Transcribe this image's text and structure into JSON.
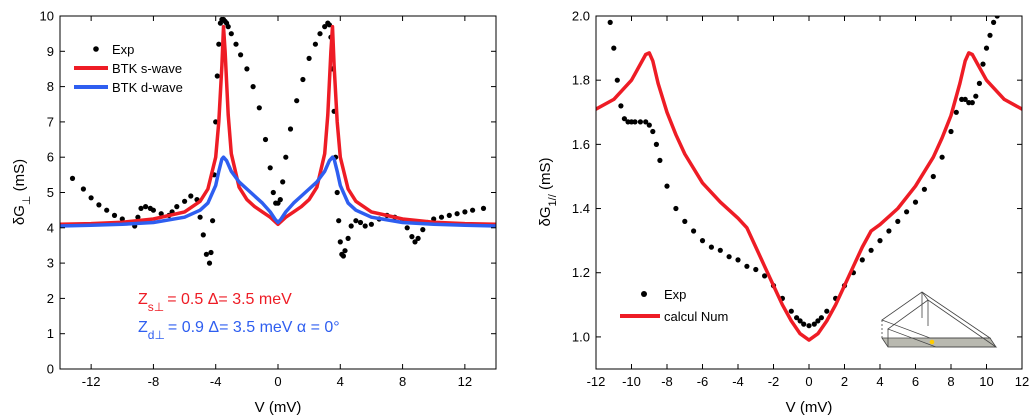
{
  "chart_data": [
    {
      "id": "left",
      "type": "line",
      "xlabel_main": "V (mV)",
      "ylabel_main": "δG",
      "ylabel_sub": "⊥",
      "ylabel_unit": " (mS)",
      "xlim": [
        -14,
        14
      ],
      "ylim": [
        0,
        10
      ],
      "xticks": [
        -12,
        -8,
        -4,
        0,
        4,
        8,
        12
      ],
      "yticks": [
        0,
        1,
        2,
        3,
        4,
        5,
        6,
        7,
        8,
        9,
        10
      ],
      "grid": false,
      "legend_position": "top-left",
      "series": [
        {
          "name": "Exp",
          "style": "markers",
          "color": "#000000",
          "x": [
            -13.2,
            -12.5,
            -12,
            -11.5,
            -11,
            -10.5,
            -10,
            -9.5,
            -9.2,
            -9,
            -8.8,
            -8.5,
            -8.2,
            -8,
            -7.5,
            -7,
            -6.8,
            -6.5,
            -6,
            -5.6,
            -5.2,
            -5,
            -4.8,
            -4.6,
            -4.4,
            -4.3,
            -4.2,
            -4.1,
            -4,
            -3.9,
            -3.8,
            -3.7,
            -3.6,
            -3.5,
            -3.4,
            -3.3,
            -3.2,
            -3,
            -2.7,
            -2.4,
            -2,
            -1.6,
            -1.2,
            -0.8,
            -0.5,
            -0.3,
            -0.15,
            0,
            0.15,
            0.3,
            0.5,
            0.8,
            1.2,
            1.6,
            2,
            2.4,
            2.7,
            3,
            3.2,
            3.3,
            3.4,
            3.5,
            3.6,
            3.7,
            3.8,
            3.9,
            4,
            4.1,
            4.2,
            4.3,
            4.5,
            4.7,
            5,
            5.3,
            5.6,
            6,
            6.5,
            7,
            7.5,
            8,
            8.3,
            8.6,
            8.8,
            9,
            9.3,
            9.6,
            10,
            10.5,
            11,
            11.5,
            12,
            12.5,
            13.2
          ],
          "y": [
            5.4,
            5.1,
            4.85,
            4.65,
            4.5,
            4.35,
            4.25,
            4.15,
            4.05,
            4.3,
            4.55,
            4.6,
            4.55,
            4.5,
            4.4,
            4.35,
            4.45,
            4.6,
            4.75,
            4.9,
            4.8,
            4.3,
            3.8,
            3.25,
            3.0,
            3.3,
            4.2,
            5.5,
            7.0,
            8.3,
            9.2,
            9.8,
            9.9,
            9.9,
            9.85,
            9.8,
            9.7,
            9.5,
            9.2,
            8.9,
            8.5,
            8.0,
            7.4,
            6.5,
            5.7,
            5.0,
            4.7,
            4.7,
            4.8,
            5.3,
            6.0,
            6.8,
            7.6,
            8.2,
            8.8,
            9.2,
            9.5,
            9.7,
            9.8,
            9.75,
            9.4,
            8.5,
            7.3,
            6.0,
            5.0,
            4.2,
            3.6,
            3.25,
            3.2,
            3.35,
            3.7,
            4.05,
            4.2,
            4.15,
            4.05,
            4.1,
            4.25,
            4.35,
            4.3,
            4.2,
            4.0,
            3.75,
            3.6,
            3.7,
            3.95,
            4.15,
            4.25,
            4.3,
            4.35,
            4.4,
            4.45,
            4.5,
            4.55
          ]
        },
        {
          "name": "BTK s-wave",
          "style": "line",
          "color": "#ee1c25",
          "x": [
            -14,
            -12,
            -10,
            -8,
            -6,
            -5,
            -4.5,
            -4,
            -3.8,
            -3.6,
            -3.5,
            -3.4,
            -3.2,
            -3,
            -2.5,
            -2,
            -1.5,
            -1,
            -0.5,
            0,
            0.5,
            1,
            1.5,
            2,
            2.5,
            3,
            3.2,
            3.4,
            3.5,
            3.6,
            3.8,
            4,
            4.5,
            5,
            6,
            8,
            10,
            12,
            14
          ],
          "y": [
            4.1,
            4.12,
            4.16,
            4.25,
            4.45,
            4.75,
            5.1,
            6.0,
            7.0,
            8.6,
            9.7,
            9.0,
            7.2,
            6.1,
            5.15,
            4.8,
            4.6,
            4.45,
            4.3,
            4.1,
            4.3,
            4.45,
            4.6,
            4.8,
            5.15,
            6.1,
            7.2,
            9.0,
            9.7,
            8.6,
            7.0,
            6.0,
            5.1,
            4.75,
            4.45,
            4.25,
            4.16,
            4.12,
            4.1
          ]
        },
        {
          "name": "BTK d-wave",
          "style": "line",
          "color": "#2e5ef0",
          "x": [
            -14,
            -12,
            -10,
            -8,
            -6,
            -5,
            -4.5,
            -4,
            -3.8,
            -3.6,
            -3.5,
            -3.3,
            -3,
            -2.5,
            -2,
            -1.5,
            -1,
            -0.5,
            -0.2,
            0,
            0.2,
            0.5,
            1,
            1.5,
            2,
            2.5,
            3,
            3.3,
            3.5,
            3.6,
            3.8,
            4,
            4.5,
            5,
            6,
            8,
            10,
            12,
            14
          ],
          "y": [
            4.05,
            4.07,
            4.1,
            4.15,
            4.3,
            4.5,
            4.7,
            5.2,
            5.6,
            5.95,
            6.0,
            5.9,
            5.6,
            5.3,
            5.1,
            4.9,
            4.7,
            4.45,
            4.25,
            4.15,
            4.25,
            4.45,
            4.7,
            4.9,
            5.1,
            5.3,
            5.6,
            5.9,
            6.0,
            5.95,
            5.6,
            5.2,
            4.7,
            4.5,
            4.3,
            4.15,
            4.1,
            4.07,
            4.05
          ]
        }
      ],
      "annotations": [
        {
          "name": "s-wave-params",
          "color": "#ee1c25",
          "parts": [
            "Z",
            "s⊥",
            "= 0.5  Δ= 3.5 meV"
          ]
        },
        {
          "name": "d-wave-params",
          "color": "#2e5ef0",
          "parts": [
            "Z",
            "d⊥",
            "= 0.9  Δ= 3.5 meV  α = 0°"
          ]
        }
      ]
    },
    {
      "id": "right",
      "type": "line",
      "xlabel_main": "V (mV)",
      "ylabel_main": "δG",
      "ylabel_sub": "1//",
      "ylabel_unit": " (mS)",
      "xlim": [
        -12,
        12
      ],
      "ylim": [
        0.9,
        2.0
      ],
      "xticks": [
        -12,
        -10,
        -8,
        -6,
        -4,
        -2,
        0,
        2,
        4,
        6,
        8,
        10,
        12
      ],
      "yticks": [
        1.0,
        1.2,
        1.4,
        1.6,
        1.8,
        2.0
      ],
      "ytick_labels": [
        "1.0",
        "1.2",
        "1.4",
        "1.6",
        "1.8",
        "2.0"
      ],
      "grid": false,
      "legend_position": "bottom-left",
      "series": [
        {
          "name": "Exp",
          "style": "markers",
          "color": "#000000",
          "x": [
            -11.2,
            -11,
            -10.8,
            -10.6,
            -10.4,
            -10.2,
            -10,
            -9.8,
            -9.5,
            -9.2,
            -9,
            -8.8,
            -8.6,
            -8.4,
            -8,
            -7.5,
            -7,
            -6.5,
            -6,
            -5.5,
            -5,
            -4.5,
            -4,
            -3.5,
            -3,
            -2.5,
            -2,
            -1.5,
            -1,
            -0.7,
            -0.5,
            -0.3,
            0,
            0.3,
            0.5,
            0.7,
            1,
            1.5,
            2,
            2.5,
            3,
            3.5,
            4,
            4.5,
            5,
            5.5,
            6,
            6.5,
            7,
            7.5,
            8,
            8.3,
            8.6,
            8.8,
            9,
            9.2,
            9.4,
            9.6,
            9.8,
            10,
            10.2,
            10.4,
            10.6
          ],
          "y": [
            1.98,
            1.9,
            1.8,
            1.72,
            1.68,
            1.67,
            1.67,
            1.67,
            1.67,
            1.67,
            1.66,
            1.64,
            1.6,
            1.55,
            1.47,
            1.4,
            1.36,
            1.33,
            1.3,
            1.28,
            1.27,
            1.25,
            1.24,
            1.22,
            1.21,
            1.19,
            1.16,
            1.12,
            1.08,
            1.06,
            1.05,
            1.04,
            1.035,
            1.04,
            1.05,
            1.06,
            1.08,
            1.12,
            1.16,
            1.2,
            1.24,
            1.27,
            1.3,
            1.33,
            1.36,
            1.39,
            1.42,
            1.46,
            1.5,
            1.56,
            1.64,
            1.7,
            1.74,
            1.74,
            1.73,
            1.73,
            1.75,
            1.79,
            1.85,
            1.9,
            1.94,
            1.98,
            2.0
          ]
        },
        {
          "name": "calcul Num",
          "style": "line",
          "color": "#ee1c25",
          "x": [
            -12,
            -11,
            -10,
            -9.5,
            -9.2,
            -9,
            -8.8,
            -8.5,
            -8,
            -7.5,
            -7,
            -6,
            -5,
            -4,
            -3.5,
            -3,
            -2.5,
            -2,
            -1.5,
            -1,
            -0.5,
            0,
            0.5,
            1,
            1.5,
            2,
            2.5,
            3,
            3.5,
            4,
            5,
            6,
            7,
            7.5,
            8,
            8.5,
            8.8,
            9,
            9.2,
            9.5,
            10,
            11,
            12
          ],
          "y": [
            1.71,
            1.74,
            1.8,
            1.85,
            1.88,
            1.885,
            1.86,
            1.79,
            1.7,
            1.63,
            1.57,
            1.48,
            1.42,
            1.37,
            1.34,
            1.28,
            1.22,
            1.16,
            1.1,
            1.05,
            1.01,
            0.99,
            1.01,
            1.05,
            1.1,
            1.16,
            1.22,
            1.28,
            1.33,
            1.35,
            1.4,
            1.47,
            1.56,
            1.62,
            1.69,
            1.79,
            1.86,
            1.885,
            1.88,
            1.85,
            1.8,
            1.74,
            1.71
          ]
        }
      ]
    }
  ]
}
